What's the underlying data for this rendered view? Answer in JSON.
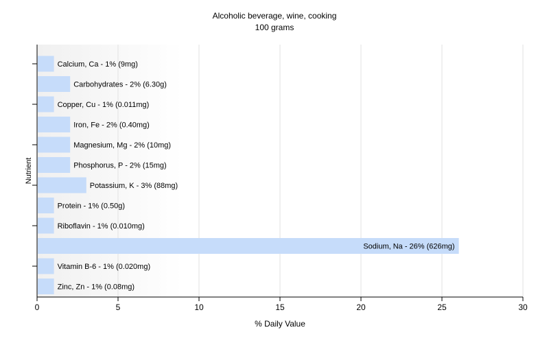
{
  "chart_data": {
    "type": "bar",
    "orientation": "horizontal",
    "title": "Alcoholic beverage, wine, cooking",
    "subtitle": "100 grams",
    "xlabel": "% Daily Value",
    "ylabel": "Nutrient",
    "xlim": [
      0,
      30
    ],
    "xticks": [
      0,
      5,
      10,
      15,
      20,
      25,
      30
    ],
    "grid": true,
    "bar_color": "#c6dcfa",
    "categories": [
      "Calcium, Ca - 1% (9mg)",
      "Carbohydrates - 2% (6.30g)",
      "Copper, Cu - 1% (0.011mg)",
      "Iron, Fe - 2% (0.40mg)",
      "Magnesium, Mg - 2% (10mg)",
      "Phosphorus, P - 2% (15mg)",
      "Potassium, K - 3% (88mg)",
      "Protein - 1% (0.50g)",
      "Riboflavin - 1% (0.010mg)",
      "Sodium, Na - 26% (626mg)",
      "Vitamin B-6 - 1% (0.020mg)",
      "Zinc, Zn - 1% (0.08mg)"
    ],
    "values": [
      1,
      2,
      1,
      2,
      2,
      2,
      3,
      1,
      1,
      26,
      1,
      1
    ]
  }
}
